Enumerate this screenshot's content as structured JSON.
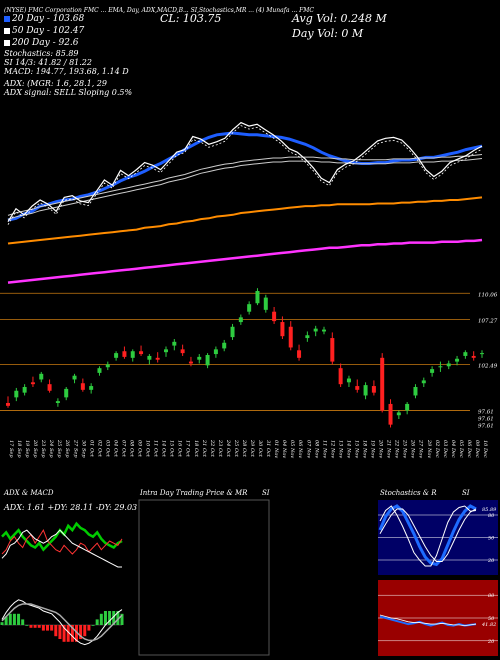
{
  "header": {
    "top_line": "(NYSE) FMC Corporation FMC ... EMA, Day, ADX,MACD,B... SI,Stochastics,MR ... (4) Munafa ... FMC",
    "close_label": "CL: 103.75",
    "avg_vol": "Avg Vol: 0.248  M",
    "day_vol": "Day Vol: 0  M",
    "ema20": "20 Day - 103.68",
    "ema50": "50 Day - 102.47",
    "ema200": "200 Day - 92.6",
    "stoch": "Stochastics: 85.89",
    "si": "SI 14/3: 41.82 / 81.22",
    "macd": "MACD: 194.77, 193.68, 1.14  D",
    "adx": "ADX:                    (MGR: 1.6, 28.1, 29",
    "adx_signal": "ADX  signal: SELL  Sloping 0.5%"
  },
  "colors": {
    "price": "#ffffff",
    "ema20": "#1e5eff",
    "ema50": "#cccccc",
    "ema100": "#ff8c00",
    "ema200": "#ff33ff",
    "up": "#2ecc40",
    "down": "#ff2020",
    "adx_plus": "#00cc00",
    "adx_minus": "#ff3333",
    "stoch_bg": "#000066",
    "si_bg": "#990000"
  },
  "chart_data": [
    {
      "type": "line",
      "name": "price-ema-overlay",
      "x": [
        "17 Sep",
        "18 Sep",
        "19 Sep",
        "20 Sep",
        "23 Sep",
        "24 Sep",
        "25 Sep",
        "26 Sep",
        "27 Sep",
        "30 Sep",
        "01 Oct",
        "02 Oct",
        "03 Oct",
        "04 Oct",
        "07 Oct",
        "08 Oct",
        "09 Oct",
        "10 Oct",
        "11 Oct",
        "14 Oct",
        "15 Oct",
        "16 Oct",
        "17 Oct",
        "18 Oct",
        "21 Oct",
        "22 Oct",
        "23 Oct",
        "24 Oct",
        "25 Oct",
        "28 Oct",
        "29 Oct",
        "30 Oct",
        "31 Oct",
        "01 Nov",
        "04 Nov",
        "05 Nov",
        "06 Nov",
        "07 Nov",
        "08 Nov",
        "11 Nov",
        "12 Nov",
        "13 Nov",
        "14 Nov",
        "15 Nov",
        "18 Nov",
        "19 Nov",
        "20 Nov",
        "21 Nov",
        "22 Nov",
        "25 Nov",
        "26 Nov",
        "27 Nov",
        "29 Nov",
        "02 Dec",
        "03 Dec",
        "04 Dec",
        "05 Dec",
        "06 Dec",
        "09 Dec",
        "10 Dec"
      ],
      "series": [
        {
          "name": "20 Day",
          "values": [
            95.2,
            95.4,
            95.9,
            96.2,
            96.8,
            97.0,
            97.3,
            97.5,
            97.6,
            97.9,
            98.1,
            98.4,
            98.8,
            99.2,
            99.7,
            100.1,
            100.4,
            100.8,
            101.3,
            101.7,
            102.2,
            102.7,
            103.3,
            103.8,
            104.3,
            104.7,
            105.0,
            105.1,
            105.2,
            105.1,
            105.0,
            105.0,
            104.9,
            104.8,
            104.7,
            104.5,
            104.2,
            103.9,
            103.5,
            103.0,
            102.6,
            102.3,
            102.0,
            101.8,
            101.7,
            101.7,
            101.8,
            101.8,
            102.0,
            102.1,
            102.1,
            102.2,
            102.4,
            102.4,
            102.6,
            102.8,
            103.0,
            103.3,
            103.5,
            103.7
          ]
        },
        {
          "name": "50 Day",
          "values": [
            95.5,
            95.8,
            96.0,
            96.2,
            96.5,
            96.7,
            96.9,
            97.1,
            97.3,
            97.5,
            97.7,
            97.9,
            98.1,
            98.3,
            98.5,
            98.7,
            98.9,
            99.1,
            99.3,
            99.5,
            99.8,
            100.0,
            100.2,
            100.5,
            100.8,
            101.0,
            101.2,
            101.4,
            101.5,
            101.7,
            101.8,
            101.9,
            102.0,
            102.1,
            102.1,
            102.2,
            102.2,
            102.2,
            102.2,
            102.1,
            102.1,
            102.0,
            102.0,
            101.9,
            101.9,
            101.9,
            101.9,
            101.9,
            102.0,
            102.0,
            102.0,
            102.1,
            102.1,
            102.1,
            102.2,
            102.2,
            102.3,
            102.3,
            102.4,
            102.5
          ]
        },
        {
          "name": "100 Day",
          "values": [
            92.5,
            92.6,
            92.7,
            92.8,
            92.9,
            93.0,
            93.1,
            93.2,
            93.3,
            93.4,
            93.5,
            93.6,
            93.7,
            93.8,
            93.9,
            94.0,
            94.1,
            94.3,
            94.4,
            94.5,
            94.7,
            94.8,
            95.0,
            95.1,
            95.3,
            95.4,
            95.6,
            95.7,
            95.8,
            96.0,
            96.1,
            96.2,
            96.3,
            96.4,
            96.5,
            96.6,
            96.7,
            96.8,
            96.8,
            96.9,
            96.9,
            97.0,
            97.0,
            97.0,
            97.0,
            97.0,
            97.1,
            97.1,
            97.1,
            97.2,
            97.2,
            97.3,
            97.3,
            97.4,
            97.4,
            97.5,
            97.5,
            97.6,
            97.7,
            97.8
          ]
        },
        {
          "name": "200 Day",
          "values": [
            88.0,
            88.1,
            88.2,
            88.3,
            88.4,
            88.5,
            88.6,
            88.7,
            88.8,
            88.9,
            89.0,
            89.1,
            89.2,
            89.3,
            89.4,
            89.5,
            89.6,
            89.7,
            89.8,
            89.9,
            90.0,
            90.1,
            90.2,
            90.3,
            90.4,
            90.5,
            90.6,
            90.7,
            90.8,
            90.9,
            91.0,
            91.1,
            91.2,
            91.3,
            91.4,
            91.5,
            91.6,
            91.7,
            91.8,
            91.9,
            92.0,
            92.0,
            92.1,
            92.2,
            92.3,
            92.3,
            92.4,
            92.4,
            92.5,
            92.5,
            92.6,
            92.6,
            92.6,
            92.6,
            92.7,
            92.7,
            92.7,
            92.8,
            92.8,
            92.9
          ]
        },
        {
          "name": "Price",
          "values": [
            95.0,
            96.5,
            95.8,
            96.8,
            97.5,
            97.0,
            96.2,
            97.8,
            98.0,
            97.4,
            97.2,
            98.5,
            99.8,
            99.2,
            100.9,
            100.3,
            101.0,
            101.8,
            101.5,
            101.0,
            102.0,
            103.0,
            103.3,
            104.8,
            104.5,
            103.9,
            104.2,
            104.6,
            105.6,
            106.4,
            106.0,
            106.2,
            105.6,
            105.0,
            104.3,
            103.4,
            103.0,
            102.2,
            101.2,
            100.0,
            99.5,
            101.0,
            101.6,
            102.0,
            102.7,
            103.5,
            104.3,
            104.6,
            104.7,
            104.4,
            103.5,
            102.4,
            101.0,
            100.2,
            100.8,
            101.8,
            102.2,
            102.6,
            103.2,
            103.7
          ]
        }
      ],
      "ylim": [
        86,
        109
      ]
    },
    {
      "type": "bar",
      "name": "candlestick",
      "price_labels": [
        "110.06",
        "107.27",
        "102.49",
        "97.61",
        "97.61",
        "97.61"
      ],
      "price_levels": [
        110.06,
        107.27,
        102.49,
        97.61
      ],
      "ylim": [
        95,
        112
      ],
      "candles": [
        {
          "o": 98.4,
          "h": 99.1,
          "l": 97.9,
          "c": 98.1
        },
        {
          "o": 99.0,
          "h": 100.0,
          "l": 98.6,
          "c": 99.7
        },
        {
          "o": 99.5,
          "h": 100.4,
          "l": 99.2,
          "c": 100.1
        },
        {
          "o": 100.6,
          "h": 101.2,
          "l": 100.1,
          "c": 100.4
        },
        {
          "o": 100.9,
          "h": 101.7,
          "l": 100.6,
          "c": 101.5
        },
        {
          "o": 100.4,
          "h": 100.9,
          "l": 99.5,
          "c": 99.7
        },
        {
          "o": 98.4,
          "h": 98.9,
          "l": 98.0,
          "c": 98.6
        },
        {
          "o": 99.0,
          "h": 100.1,
          "l": 98.7,
          "c": 99.9
        },
        {
          "o": 100.9,
          "h": 101.5,
          "l": 100.5,
          "c": 101.3
        },
        {
          "o": 100.5,
          "h": 101.0,
          "l": 99.6,
          "c": 99.8
        },
        {
          "o": 99.8,
          "h": 100.5,
          "l": 99.4,
          "c": 100.2
        },
        {
          "o": 101.6,
          "h": 102.3,
          "l": 101.3,
          "c": 102.1
        },
        {
          "o": 102.2,
          "h": 102.8,
          "l": 101.9,
          "c": 102.5
        },
        {
          "o": 103.2,
          "h": 103.9,
          "l": 102.9,
          "c": 103.7
        },
        {
          "o": 103.9,
          "h": 104.4,
          "l": 103.1,
          "c": 103.3
        },
        {
          "o": 103.2,
          "h": 104.1,
          "l": 102.8,
          "c": 103.9
        },
        {
          "o": 103.9,
          "h": 104.5,
          "l": 103.4,
          "c": 103.6
        },
        {
          "o": 103.0,
          "h": 103.6,
          "l": 102.5,
          "c": 103.4
        },
        {
          "o": 103.2,
          "h": 103.8,
          "l": 102.7,
          "c": 103.0
        },
        {
          "o": 103.8,
          "h": 104.4,
          "l": 103.3,
          "c": 104.1
        },
        {
          "o": 104.5,
          "h": 105.2,
          "l": 104.0,
          "c": 104.9
        },
        {
          "o": 104.1,
          "h": 104.6,
          "l": 103.4,
          "c": 103.7
        },
        {
          "o": 102.8,
          "h": 103.3,
          "l": 102.3,
          "c": 102.6
        },
        {
          "o": 103.0,
          "h": 103.6,
          "l": 102.6,
          "c": 103.3
        },
        {
          "o": 102.4,
          "h": 103.7,
          "l": 102.1,
          "c": 103.5
        },
        {
          "o": 103.6,
          "h": 104.4,
          "l": 103.2,
          "c": 104.1
        },
        {
          "o": 104.2,
          "h": 105.1,
          "l": 103.9,
          "c": 104.8
        },
        {
          "o": 105.4,
          "h": 106.8,
          "l": 105.1,
          "c": 106.5
        },
        {
          "o": 107.0,
          "h": 107.8,
          "l": 106.7,
          "c": 107.5
        },
        {
          "o": 108.1,
          "h": 109.2,
          "l": 107.8,
          "c": 108.9
        },
        {
          "o": 109.0,
          "h": 110.6,
          "l": 108.8,
          "c": 110.3
        },
        {
          "o": 108.3,
          "h": 109.9,
          "l": 108.0,
          "c": 109.6
        },
        {
          "o": 108.1,
          "h": 108.6,
          "l": 106.8,
          "c": 107.1
        },
        {
          "o": 107.0,
          "h": 107.6,
          "l": 105.2,
          "c": 105.5
        },
        {
          "o": 106.5,
          "h": 107.1,
          "l": 104.0,
          "c": 104.3
        },
        {
          "o": 104.0,
          "h": 104.6,
          "l": 102.9,
          "c": 103.2
        },
        {
          "o": 105.3,
          "h": 106.0,
          "l": 104.9,
          "c": 105.6
        },
        {
          "o": 106.0,
          "h": 106.6,
          "l": 105.5,
          "c": 106.3
        },
        {
          "o": 106.0,
          "h": 106.5,
          "l": 105.7,
          "c": 106.2
        },
        {
          "o": 105.3,
          "h": 105.9,
          "l": 102.5,
          "c": 102.8
        },
        {
          "o": 102.1,
          "h": 102.6,
          "l": 100.1,
          "c": 100.4
        },
        {
          "o": 100.6,
          "h": 101.3,
          "l": 100.1,
          "c": 101.0
        },
        {
          "o": 100.2,
          "h": 100.9,
          "l": 99.5,
          "c": 99.8
        },
        {
          "o": 99.2,
          "h": 100.6,
          "l": 98.8,
          "c": 100.3
        },
        {
          "o": 100.2,
          "h": 100.8,
          "l": 99.2,
          "c": 99.5
        },
        {
          "o": 103.2,
          "h": 103.7,
          "l": 97.4,
          "c": 97.6
        },
        {
          "o": 98.3,
          "h": 98.8,
          "l": 95.8,
          "c": 96.1
        },
        {
          "o": 97.1,
          "h": 97.6,
          "l": 96.7,
          "c": 97.4
        },
        {
          "o": 97.6,
          "h": 98.5,
          "l": 97.2,
          "c": 98.3
        },
        {
          "o": 99.2,
          "h": 100.4,
          "l": 98.9,
          "c": 100.1
        },
        {
          "o": 100.5,
          "h": 101.1,
          "l": 100.1,
          "c": 100.8
        },
        {
          "o": 101.6,
          "h": 102.3,
          "l": 101.2,
          "c": 102.0
        },
        {
          "o": 102.2,
          "h": 102.8,
          "l": 101.7,
          "c": 102.3
        },
        {
          "o": 102.3,
          "h": 102.9,
          "l": 102.0,
          "c": 102.6
        },
        {
          "o": 102.8,
          "h": 103.4,
          "l": 102.4,
          "c": 103.1
        },
        {
          "o": 103.4,
          "h": 104.0,
          "l": 103.1,
          "c": 103.8
        },
        {
          "o": 103.4,
          "h": 103.9,
          "l": 102.9,
          "c": 103.2
        },
        {
          "o": 103.6,
          "h": 104.0,
          "l": 103.2,
          "c": 103.7
        }
      ]
    },
    {
      "type": "line",
      "name": "adx-macd",
      "title": "ADX  & MACD",
      "readout": "ADX: 1.61  +DY: 28.11  -DY: 29.03",
      "adx_plus": [
        30,
        32,
        29,
        31,
        33,
        30,
        28,
        26,
        25,
        27,
        24,
        26,
        28,
        30,
        33,
        31,
        35,
        33,
        36,
        34,
        33,
        31,
        30,
        32,
        29,
        27,
        26,
        25,
        27,
        28
      ],
      "adx_minus": [
        22,
        24,
        28,
        30,
        27,
        25,
        29,
        31,
        27,
        30,
        33,
        28,
        26,
        24,
        23,
        26,
        24,
        22,
        24,
        27,
        26,
        23,
        25,
        27,
        24,
        26,
        28,
        27,
        26,
        29
      ],
      "adx_line": [
        20,
        22,
        26,
        27,
        29,
        32,
        33,
        31,
        29,
        28,
        27,
        28,
        30,
        31,
        33,
        31,
        29,
        27,
        26,
        25,
        24,
        23,
        22,
        21,
        20,
        19,
        18,
        17,
        16,
        16
      ],
      "macd": [
        0.4,
        0.9,
        1.3,
        1.6,
        1.8,
        1.7,
        1.5,
        1.4,
        1.3,
        1.2,
        1.0,
        0.9,
        0.8,
        0.5,
        0.2,
        -0.2,
        -0.5,
        -0.8,
        -1.1,
        -1.3,
        -1.4,
        -1.3,
        -1.1,
        -0.8,
        -0.4,
        0.0,
        0.3,
        0.6,
        0.9,
        1.1
      ],
      "signal": [
        0.3,
        0.6,
        0.9,
        1.2,
        1.4,
        1.5,
        1.5,
        1.5,
        1.4,
        1.3,
        1.2,
        1.1,
        1.0,
        0.9,
        0.7,
        0.4,
        0.1,
        -0.2,
        -0.5,
        -0.8,
        -1.0,
        -1.1,
        -1.1,
        -1.0,
        -0.8,
        -0.5,
        -0.2,
        0.1,
        0.4,
        0.7
      ]
    },
    {
      "type": "table",
      "name": "intraday",
      "title": "Intra Day Trading Price  & MR",
      "right_label": "SI"
    },
    {
      "type": "line",
      "name": "stochastics",
      "title": "Stochastics & R",
      "right_label": "SI",
      "levels": [
        "80",
        "50",
        "20"
      ],
      "end_label": "85.89",
      "k": [
        60,
        78,
        88,
        92,
        85,
        70,
        55,
        38,
        24,
        16,
        14,
        22,
        40,
        58,
        74,
        85,
        92,
        88
      ],
      "d": [
        55,
        68,
        80,
        88,
        88,
        80,
        66,
        52,
        38,
        26,
        18,
        18,
        28,
        44,
        60,
        74,
        84,
        88
      ],
      "fast": [
        72,
        86,
        92,
        80,
        65,
        48,
        30,
        20,
        12,
        12,
        26,
        48,
        70,
        84,
        90,
        92,
        85,
        86
      ]
    },
    {
      "type": "line",
      "name": "si",
      "levels": [
        "80",
        "50",
        "20"
      ],
      "end_label": "41.82",
      "si_blue": [
        52,
        50,
        48,
        46,
        44,
        42,
        43,
        45,
        42,
        40,
        42,
        44,
        41,
        40,
        42,
        40,
        41,
        42
      ],
      "si_white": [
        54,
        52,
        50,
        49,
        47,
        45,
        44,
        44,
        43,
        42,
        42,
        43,
        42,
        41,
        41,
        40,
        41,
        42
      ]
    }
  ]
}
